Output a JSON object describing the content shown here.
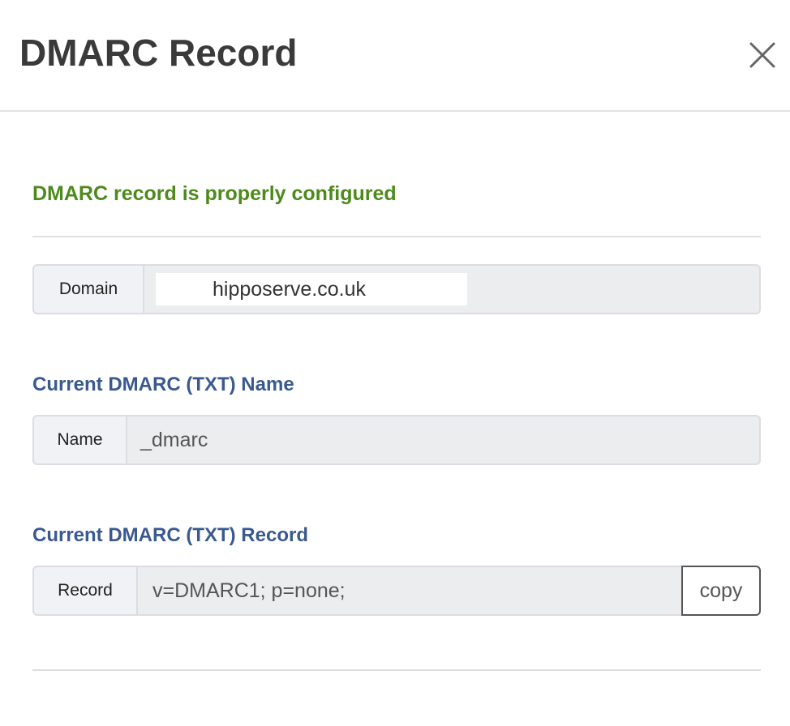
{
  "header": {
    "title": "DMARC Record",
    "close_icon": "close-icon"
  },
  "status": {
    "text": "DMARC record is properly configured",
    "color": "#4d8a1c"
  },
  "domain": {
    "addon": "Domain",
    "value": "hipposerve.co.uk"
  },
  "name_section": {
    "label": "Current DMARC (TXT) Name",
    "addon": "Name",
    "value": "_dmarc"
  },
  "record_section": {
    "label": "Current DMARC (TXT) Record",
    "addon": "Record",
    "value": "v=DMARC1; p=none;",
    "copy_label": "copy"
  }
}
